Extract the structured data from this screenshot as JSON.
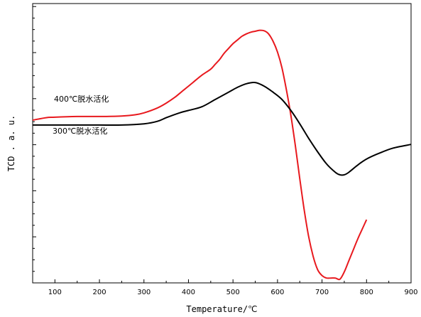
{
  "chart_data": {
    "type": "line",
    "title": "",
    "xlabel": "Temperature/℃",
    "ylabel": "TCD . a. u.",
    "xlim": [
      50,
      900
    ],
    "ylim": [
      -6.5,
      5
    ],
    "grid": false,
    "x_ticks": [
      100,
      200,
      300,
      400,
      500,
      600,
      700,
      800,
      900
    ],
    "x_tick_labels": [
      "100",
      "200",
      "300",
      "400",
      "500",
      "600",
      "700",
      "800",
      "900"
    ],
    "y_tick_labels_shown": false,
    "annotations": [
      {
        "text": "400℃脱水活化",
        "series": 0
      },
      {
        "text": "300℃脱水活化",
        "series": 1
      }
    ],
    "series": [
      {
        "name": "400℃脱水活化",
        "color": "#e8191e",
        "x": [
          50,
          80,
          100,
          150,
          200,
          250,
          280,
          300,
          330,
          350,
          370,
          390,
          410,
          430,
          450,
          460,
          470,
          480,
          490,
          500,
          510,
          520,
          530,
          540,
          550,
          560,
          570,
          580,
          590,
          600,
          610,
          620,
          630,
          640,
          650,
          660,
          670,
          680,
          690,
          700,
          710,
          720,
          730,
          740,
          750,
          760,
          770,
          780,
          790,
          800
        ],
        "y": [
          0.2,
          0.3,
          0.32,
          0.35,
          0.35,
          0.37,
          0.42,
          0.5,
          0.7,
          0.9,
          1.15,
          1.45,
          1.75,
          2.05,
          2.3,
          2.5,
          2.7,
          2.95,
          3.15,
          3.35,
          3.5,
          3.65,
          3.75,
          3.82,
          3.86,
          3.9,
          3.88,
          3.75,
          3.45,
          3.0,
          2.35,
          1.45,
          0.4,
          -0.85,
          -2.2,
          -3.5,
          -4.6,
          -5.4,
          -5.95,
          -6.2,
          -6.3,
          -6.3,
          -6.3,
          -6.35,
          -6.05,
          -5.6,
          -5.15,
          -4.7,
          -4.3,
          -3.9
        ]
      },
      {
        "name": "300℃脱水活化",
        "color": "#000000",
        "x": [
          50,
          100,
          150,
          200,
          250,
          300,
          330,
          350,
          380,
          400,
          430,
          460,
          490,
          510,
          530,
          550,
          570,
          590,
          610,
          630,
          650,
          670,
          690,
          710,
          730,
          740,
          750,
          760,
          780,
          800,
          830,
          860,
          900
        ],
        "y": [
          0.0,
          0.0,
          0.0,
          0.0,
          0.0,
          0.05,
          0.15,
          0.3,
          0.5,
          0.6,
          0.75,
          1.05,
          1.35,
          1.55,
          1.7,
          1.75,
          1.6,
          1.35,
          1.05,
          0.6,
          0.05,
          -0.55,
          -1.1,
          -1.6,
          -1.95,
          -2.05,
          -2.05,
          -1.95,
          -1.65,
          -1.4,
          -1.15,
          -0.95,
          -0.8
        ]
      }
    ]
  }
}
